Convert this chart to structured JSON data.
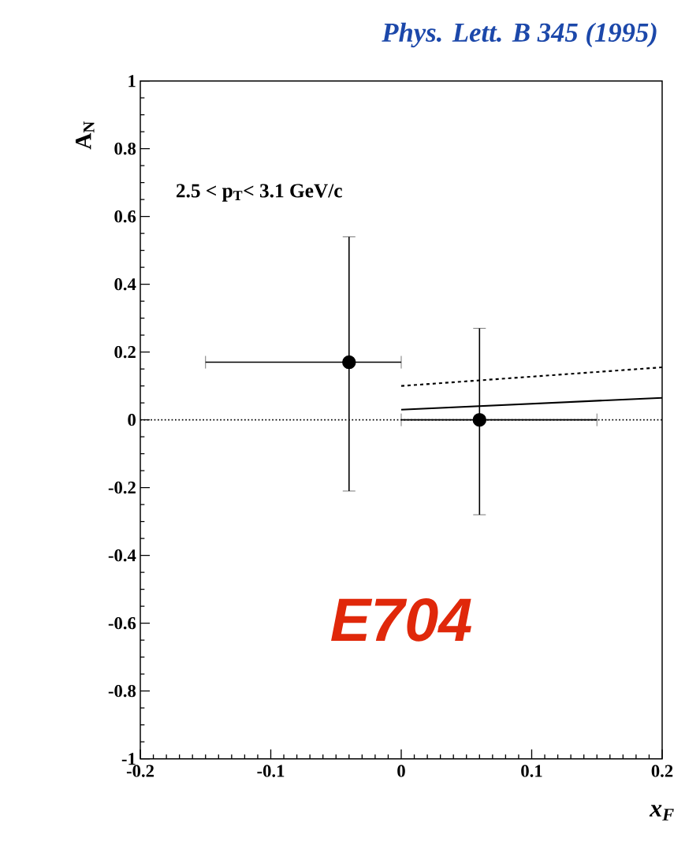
{
  "chart_data": {
    "type": "scatter",
    "title": "*Phys. Lett. B 345 (1995)*",
    "xlabel": "x$_{F}$",
    "ylabel": "A$_{N}$",
    "annotations": [
      "2.5 < p$_{T}$< 3.1 GeV/c",
      "E704"
    ],
    "xlim": [
      -0.2,
      0.2
    ],
    "ylim": [
      -1,
      1
    ],
    "xticks": [
      -0.2,
      -0.1,
      0,
      0.1,
      0.2
    ],
    "yticks": [
      -1,
      -0.8,
      -0.6,
      -0.4,
      -0.2,
      0,
      0.2,
      0.4,
      0.6,
      0.8,
      1
    ],
    "grid": false,
    "marker": "circle",
    "series": [
      {
        "color": "#000000",
        "x": [
          -0.04,
          0.06
        ],
        "values": [
          0.17,
          0.0
        ],
        "errors": [
          [
            -0.21,
            0.54
          ],
          [
            -0.28,
            0.27
          ]
        ],
        "xerrors": [
          [
            -0.15,
            0.0
          ],
          [
            0.0,
            0.15
          ]
        ]
      },
      {
        "type": "line",
        "marker": "none",
        "line_style": "dashed",
        "color": "#000000",
        "x": [
          0,
          0.2
        ],
        "values": [
          0.1,
          0.155
        ]
      },
      {
        "type": "line",
        "marker": "none",
        "line_style": "solid",
        "color": "#000000",
        "x": [
          0,
          0.2
        ],
        "values": [
          0.03,
          0.065
        ]
      }
    ],
    "ref_lines": [
      {
        "axis": "y",
        "value": 0,
        "line_style": "dotted",
        "color": "#000000"
      }
    ]
  }
}
